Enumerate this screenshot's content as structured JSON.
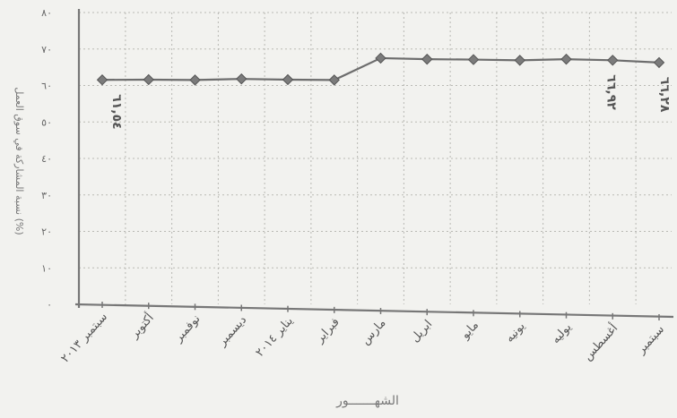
{
  "chart_data": {
    "type": "line",
    "title": "",
    "xlabel": "الشهـــــــور",
    "ylabel": "نسبة المشاركة في سوق العمل (%)",
    "ylim": [
      0,
      80
    ],
    "yticks": [
      "٠",
      "١٠",
      "٢٠",
      "٣٠",
      "٤٠",
      "٥٠",
      "٦٠",
      "٧٠",
      "٨٠"
    ],
    "categories": [
      "سبتمبر ٢٠١٣",
      "أكتوبر",
      "نوفمبر",
      "ديسمبر",
      "يناير ٢٠١٤",
      "فبراير",
      "مارس",
      "ابريل",
      "مايو",
      "يونيه",
      "يوليه",
      "أغسطس",
      "سبتمبر"
    ],
    "values": [
      61.54,
      61.6,
      61.5,
      61.8,
      61.6,
      61.5,
      67.5,
      67.2,
      67.1,
      66.9,
      67.2,
      66.92,
      66.28
    ],
    "annotations": [
      {
        "index": 0,
        "text": "٦١,٥٤"
      },
      {
        "index": 11,
        "text": "٦٦,٩٢"
      },
      {
        "index": 12,
        "text": "٦٦,٢٨"
      }
    ],
    "grid": true,
    "marker": "diamond",
    "colors": {
      "line": "#6d6d6d",
      "marker": "#7b7b7b",
      "grid": "#b9b9b4",
      "axis": "#777777"
    }
  }
}
